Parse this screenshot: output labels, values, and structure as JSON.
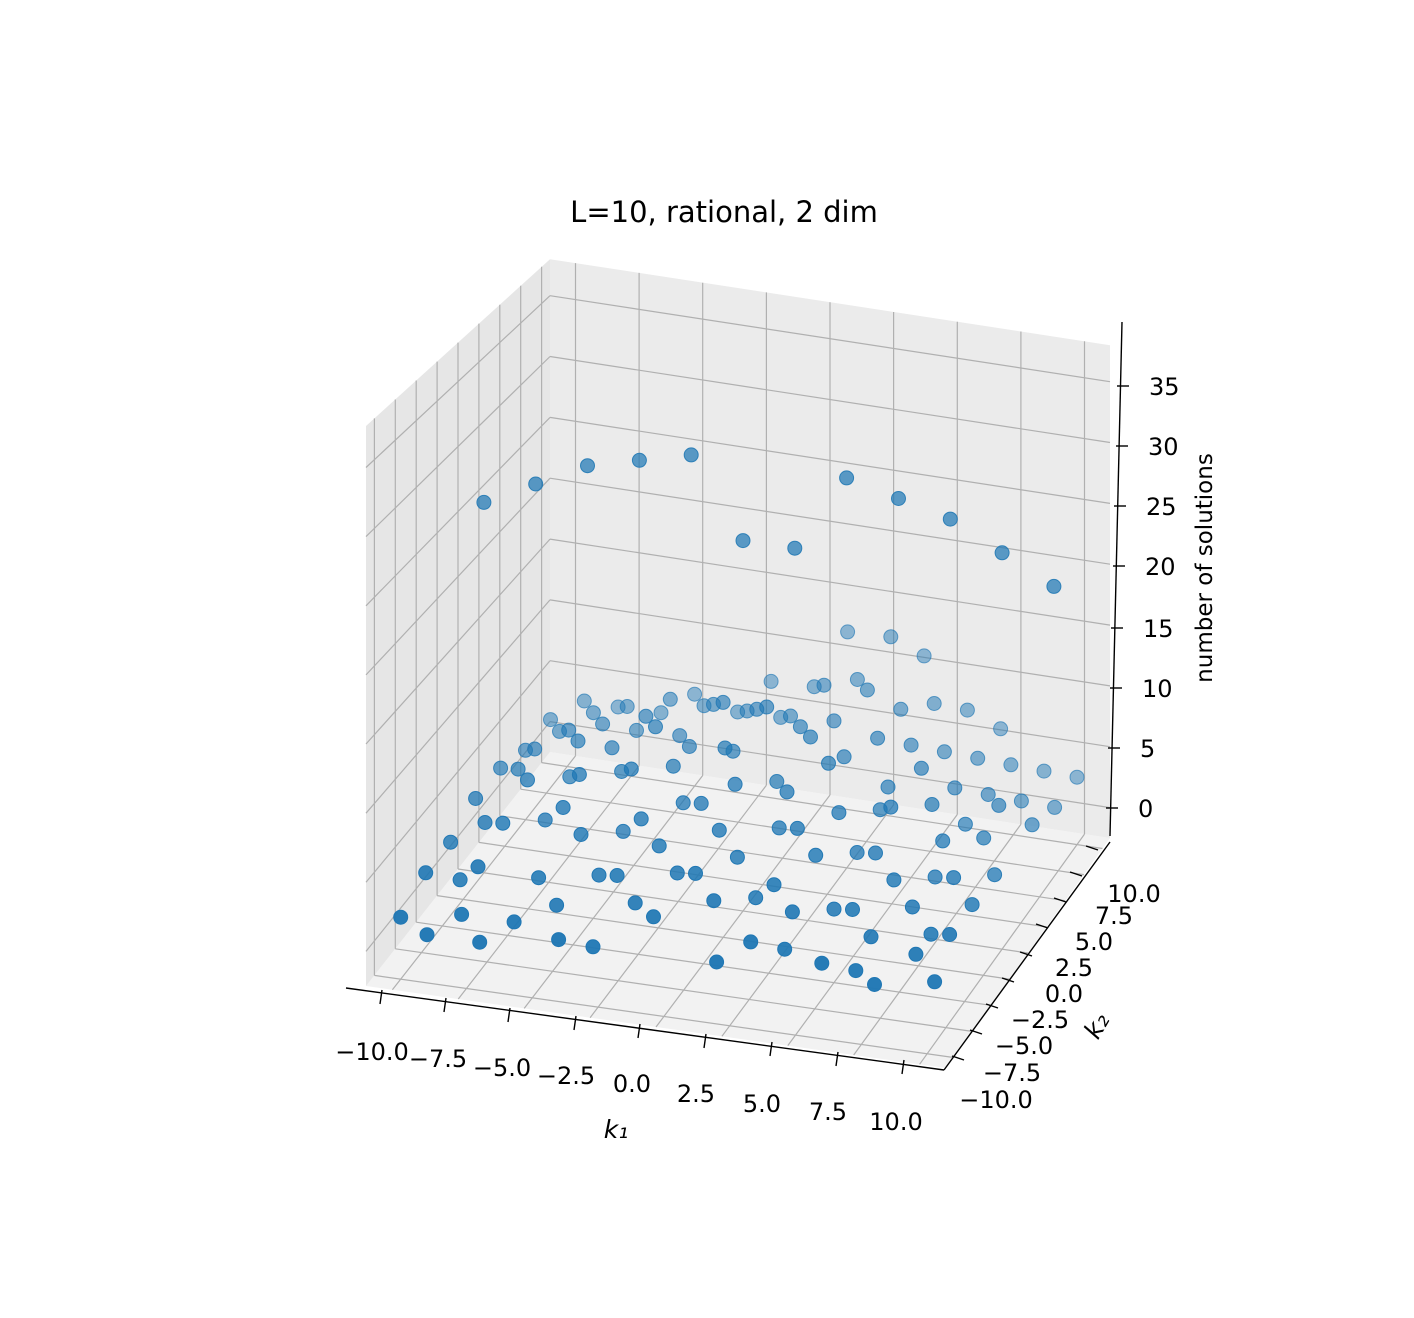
{
  "chart_data": {
    "type": "scatter",
    "projection": "3d",
    "title": "L=10, rational, 2 dim",
    "xlabel": "k₁",
    "ylabel": "k₂",
    "zlabel": "number of solutions",
    "xlim": [
      -11,
      11
    ],
    "ylim": [
      -11,
      11
    ],
    "zlim": [
      -2.5,
      38
    ],
    "xticks": [
      -10,
      -7.5,
      -5,
      -2.5,
      0,
      2.5,
      5,
      7.5,
      10
    ],
    "xtick_labels": [
      "−10.0",
      "−7.5",
      "−5.0",
      "−2.5",
      "0.0",
      "2.5",
      "5.0",
      "7.5",
      "10.0"
    ],
    "yticks": [
      -10,
      -7.5,
      -5,
      -2.5,
      0,
      2.5,
      5,
      7.5,
      10
    ],
    "ytick_labels": [
      "−10.0",
      "−7.5",
      "−5.0",
      "−2.5",
      "0.0",
      "2.5",
      "5.0",
      "7.5",
      "10.0"
    ],
    "zticks": [
      0,
      5,
      10,
      15,
      20,
      25,
      30,
      35
    ],
    "ztick_labels": [
      "0",
      "5",
      "10",
      "15",
      "20",
      "25",
      "30",
      "35"
    ],
    "grid": true,
    "marker_color": "#1f77b4",
    "pane_color": "#f2f2f2",
    "grid_color": "#b0b0b0",
    "series": [
      {
        "points": [
          [
            -10,
            0,
            26
          ],
          [
            -8,
            0,
            28
          ],
          [
            -6,
            0,
            30
          ],
          [
            -4,
            0,
            31
          ],
          [
            -2,
            0,
            32
          ],
          [
            0,
            0,
            26
          ],
          [
            2,
            0,
            26
          ],
          [
            4,
            0,
            32
          ],
          [
            6,
            0,
            31
          ],
          [
            8,
            0,
            30
          ],
          [
            10,
            0,
            28
          ],
          [
            12,
            0,
            26
          ],
          [
            -10,
            -10,
            2
          ],
          [
            -9,
            -10,
            1
          ],
          [
            -8,
            -9,
            2
          ],
          [
            -7,
            -10,
            1
          ],
          [
            -6,
            -9,
            2
          ],
          [
            -4,
            -10,
            2
          ],
          [
            -3,
            -9,
            1
          ],
          [
            -1,
            -8,
            3
          ],
          [
            2,
            -10,
            2
          ],
          [
            3,
            -9,
            3
          ],
          [
            4,
            -8,
            2
          ],
          [
            6,
            -10,
            3
          ],
          [
            7,
            -9,
            2
          ],
          [
            8,
            -10,
            2
          ],
          [
            9,
            -8,
            3
          ],
          [
            10,
            -9,
            2
          ],
          [
            -10,
            -7,
            3
          ],
          [
            -9,
            -6,
            2
          ],
          [
            -8,
            -7,
            4
          ],
          [
            -6,
            -6,
            3
          ],
          [
            -5,
            -7,
            2
          ],
          [
            -4,
            -5,
            3
          ],
          [
            -3,
            -6,
            4
          ],
          [
            -2,
            -7,
            3
          ],
          [
            -1,
            -5,
            4
          ],
          [
            0,
            -6,
            5
          ],
          [
            1,
            -7,
            4
          ],
          [
            2,
            -5,
            3
          ],
          [
            3,
            -6,
            5
          ],
          [
            4,
            -7,
            4
          ],
          [
            5,
            -5,
            3
          ],
          [
            6,
            -6,
            4
          ],
          [
            7,
            -7,
            3
          ],
          [
            8,
            -5,
            4
          ],
          [
            9,
            -6,
            3
          ],
          [
            10,
            -7,
            4
          ],
          [
            -10,
            -4,
            3
          ],
          [
            -9,
            -3,
            4
          ],
          [
            -8,
            -4,
            5
          ],
          [
            -7,
            -2,
            4
          ],
          [
            -6,
            -3,
            6
          ],
          [
            -5,
            -4,
            5
          ],
          [
            -4,
            -2,
            4
          ],
          [
            -3,
            -3,
            6
          ],
          [
            -2,
            -4,
            5
          ],
          [
            -1,
            -2,
            7
          ],
          [
            0,
            -3,
            6
          ],
          [
            1,
            -4,
            5
          ],
          [
            2,
            -2,
            6
          ],
          [
            3,
            -3,
            7
          ],
          [
            4,
            -4,
            6
          ],
          [
            5,
            -2,
            5
          ],
          [
            6,
            -3,
            6
          ],
          [
            7,
            -4,
            5
          ],
          [
            8,
            -2,
            4
          ],
          [
            9,
            -3,
            5
          ],
          [
            10,
            -4,
            4
          ],
          [
            -10,
            -1,
            4
          ],
          [
            -9,
            1,
            5
          ],
          [
            -8,
            -1,
            6
          ],
          [
            -7,
            1,
            5
          ],
          [
            -6,
            -1,
            7
          ],
          [
            -5,
            1,
            6
          ],
          [
            -4,
            -1,
            8
          ],
          [
            -3,
            1,
            7
          ],
          [
            -2,
            -1,
            6
          ],
          [
            -1,
            1,
            9
          ],
          [
            0,
            -1,
            8
          ],
          [
            1,
            1,
            7
          ],
          [
            2,
            -1,
            8
          ],
          [
            3,
            1,
            9
          ],
          [
            4,
            -1,
            7
          ],
          [
            5,
            1,
            6
          ],
          [
            6,
            -1,
            8
          ],
          [
            7,
            1,
            7
          ],
          [
            8,
            -1,
            6
          ],
          [
            9,
            1,
            5
          ],
          [
            10,
            -1,
            4
          ],
          [
            -10,
            2,
            4
          ],
          [
            -9,
            3,
            5
          ],
          [
            -8,
            4,
            6
          ],
          [
            -7,
            2,
            7
          ],
          [
            -6,
            3,
            6
          ],
          [
            -5,
            4,
            8
          ],
          [
            -4,
            2,
            9
          ],
          [
            -3,
            3,
            7
          ],
          [
            -2,
            4,
            10
          ],
          [
            -1,
            2,
            8
          ],
          [
            0,
            3,
            11
          ],
          [
            1,
            4,
            9
          ],
          [
            2,
            2,
            10
          ],
          [
            3,
            3,
            8
          ],
          [
            4,
            4,
            9
          ],
          [
            5,
            2,
            7
          ],
          [
            6,
            3,
            8
          ],
          [
            7,
            4,
            6
          ],
          [
            8,
            2,
            5
          ],
          [
            9,
            3,
            6
          ],
          [
            10,
            4,
            4
          ],
          [
            -10,
            5,
            3
          ],
          [
            -9,
            6,
            4
          ],
          [
            -8,
            7,
            5
          ],
          [
            -7,
            5,
            6
          ],
          [
            -6,
            6,
            5
          ],
          [
            -5,
            7,
            7
          ],
          [
            -4,
            5,
            6
          ],
          [
            -3,
            6,
            8
          ],
          [
            -2,
            7,
            7
          ],
          [
            -1,
            5,
            9
          ],
          [
            0,
            6,
            8
          ],
          [
            1,
            7,
            10
          ],
          [
            2,
            5,
            9
          ],
          [
            3,
            6,
            11
          ],
          [
            4,
            7,
            9
          ],
          [
            5,
            5,
            8
          ],
          [
            6,
            6,
            7
          ],
          [
            7,
            7,
            6
          ],
          [
            8,
            5,
            5
          ],
          [
            9,
            6,
            4
          ],
          [
            10,
            7,
            3
          ],
          [
            -10,
            8,
            3
          ],
          [
            -9,
            9,
            4
          ],
          [
            -8,
            10,
            3
          ],
          [
            -7,
            8,
            5
          ],
          [
            -6,
            9,
            4
          ],
          [
            -5,
            10,
            5
          ],
          [
            -4,
            8,
            6
          ],
          [
            -3,
            9,
            5
          ],
          [
            -2,
            10,
            7
          ],
          [
            -1,
            8,
            6
          ],
          [
            0,
            9,
            8
          ],
          [
            1,
            10,
            12
          ],
          [
            2,
            8,
            10
          ],
          [
            3,
            9,
            13
          ],
          [
            4,
            10,
            11
          ],
          [
            5,
            8,
            9
          ],
          [
            6,
            9,
            8
          ],
          [
            7,
            10,
            6
          ],
          [
            8,
            8,
            5
          ],
          [
            9,
            9,
            4
          ],
          [
            10,
            10,
            3
          ]
        ]
      }
    ]
  }
}
